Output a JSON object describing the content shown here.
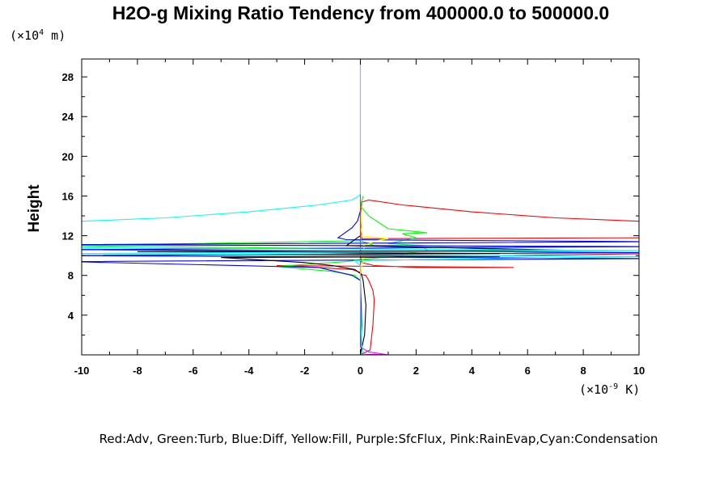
{
  "chart_data": {
    "type": "line",
    "title": "H2O-g Mixing Ratio Tendency from 400000.0 to 500000.0",
    "ylabel": "Height",
    "yunit_base": "(×10",
    "yunit_exp": "4",
    "yunit_tail": " m)",
    "xunit_base": "(×10",
    "xunit_exp": "-9",
    "xunit_tail": " K)",
    "xlim": [
      -10,
      10
    ],
    "ylim": [
      0,
      29.8
    ],
    "xticks": [
      -10,
      -8,
      -6,
      -4,
      -2,
      0,
      2,
      4,
      6,
      8,
      10
    ],
    "xtick_labels": [
      "-10",
      "-8",
      "-6",
      "-4",
      "-2",
      "0",
      "2",
      "4",
      "6",
      "8",
      "10"
    ],
    "yticks": [
      4,
      8,
      12,
      16,
      20,
      24,
      28
    ],
    "ytick_labels": [
      "4",
      "8",
      "12",
      "16",
      "20",
      "24",
      "28"
    ],
    "legend": "Red:Adv, Green:Turb, Blue:Diff, Yellow:Fill, Purple:SfcFlux, Pink:RainEvap,Cyan:Condensation",
    "series": [
      {
        "name": "Adv",
        "color": "#ff0000",
        "x": [
          0.0,
          0.35,
          0.45,
          0.5,
          0.45,
          0.3,
          0.2,
          0.1,
          0.05,
          0.0,
          -0.3,
          -1.5,
          -3.0,
          5.5,
          2.0,
          0.5,
          0.05,
          0.0,
          10.5,
          10.5,
          0.05,
          0.0,
          0.05,
          0.3,
          1.5,
          4.0,
          7.0,
          10.5
        ],
        "y": [
          0.0,
          0.5,
          3.0,
          5.5,
          6.5,
          7.5,
          8.0,
          8.05,
          8.1,
          8.3,
          8.6,
          8.8,
          9.0,
          8.8,
          8.8,
          9.0,
          9.3,
          9.8,
          10.2,
          11.8,
          11.7,
          13.5,
          15.4,
          15.6,
          15.1,
          14.4,
          13.8,
          13.4
        ]
      },
      {
        "name": "Turb",
        "color": "#00ff00",
        "x": [
          0.0,
          0.05,
          0.0,
          -0.2,
          -1.0,
          -3.0,
          -2.0,
          -0.5,
          0.0,
          0.8,
          1.5,
          1.5,
          2.4,
          2.3,
          1.0,
          0.5,
          0.2,
          0.0,
          -10.5,
          5.5,
          1.0,
          2.0,
          1.5,
          2.4,
          1.0,
          0.3,
          0.0,
          0.05,
          0.1
        ],
        "y": [
          0.0,
          3.0,
          7.5,
          8.0,
          8.4,
          8.9,
          9.1,
          9.4,
          9.6,
          9.8,
          9.9,
          10.2,
          10.5,
          10.8,
          10.9,
          11.0,
          11.3,
          11.5,
          11.0,
          10.5,
          11.2,
          11.8,
          12.2,
          12.3,
          12.7,
          14.0,
          15.0,
          15.5,
          16.0
        ]
      },
      {
        "name": "Diff",
        "color": "#0000ff",
        "x": [
          0.0,
          0.05,
          0.0,
          -0.3,
          -1.5,
          -10.5,
          10.5,
          -10.5,
          10.5,
          -10.5,
          10.5,
          -10.5,
          10.5,
          -0.5,
          -0.8,
          -0.6,
          -0.3,
          -0.1,
          0.0
        ],
        "y": [
          0.0,
          3.0,
          7.5,
          8.0,
          8.8,
          9.4,
          9.7,
          10.0,
          10.3,
          10.6,
          10.9,
          11.1,
          11.4,
          11.6,
          11.8,
          12.2,
          12.8,
          13.5,
          14.5
        ]
      },
      {
        "name": "Fill",
        "color": "#ffff00",
        "x": [
          0.0,
          0.0,
          0.15,
          0.1,
          0.6,
          1.0,
          0.0,
          0.05,
          0.0
        ],
        "y": [
          0.0,
          8.0,
          10.5,
          11.0,
          11.5,
          11.7,
          12.0,
          13.0,
          15.0
        ]
      },
      {
        "name": "SfcFlux",
        "color": "#ff00ff",
        "x": [
          0.0,
          0.4,
          1.0,
          0.3,
          0.0,
          0.0
        ],
        "y": [
          0.0,
          0.05,
          0.0,
          0.3,
          0.8,
          29.8
        ]
      },
      {
        "name": "RainEvap",
        "color": "#000000",
        "x": [
          0.0,
          0.15,
          0.2,
          0.1,
          0.05,
          0.0,
          -0.2,
          -1.0,
          -2.0,
          -5.0,
          5.0,
          -5.0,
          5.0,
          -8.0,
          8.0,
          -0.5,
          0.0
        ],
        "y": [
          0.0,
          2.0,
          5.0,
          7.5,
          8.0,
          8.2,
          8.6,
          9.0,
          9.3,
          9.8,
          9.9,
          10.1,
          10.2,
          10.4,
          10.5,
          11.0,
          12.0
        ]
      },
      {
        "name": "Condensation",
        "color": "#00ffff",
        "x": [
          0.0,
          0.0,
          -0.05,
          -0.3,
          -1.5,
          -4.0,
          -7.0,
          -10.5,
          -10.5,
          10.5,
          -10.5,
          10.5,
          -0.2,
          0.0,
          0.0,
          0.05,
          0.1,
          0.0
        ],
        "y": [
          29.8,
          16.2,
          16.0,
          15.6,
          15.1,
          14.4,
          13.8,
          13.4,
          10.8,
          10.5,
          10.2,
          9.9,
          9.5,
          9.0,
          5.0,
          1.0,
          0.3,
          0.0
        ]
      }
    ]
  }
}
